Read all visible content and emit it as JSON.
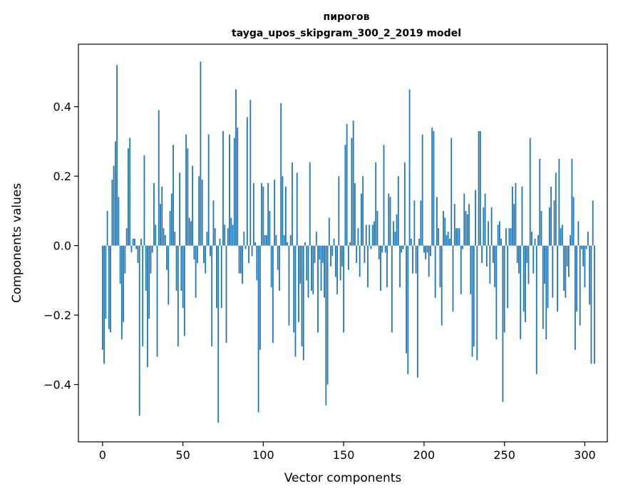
{
  "chart_data": {
    "type": "bar",
    "title": "пирогов",
    "subtitle": "tayga_upos_skipgram_300_2_2019 model",
    "xlabel": "Vector components",
    "ylabel": "Components values",
    "xlim": [
      -15,
      314
    ],
    "ylim": [
      -0.565,
      0.58
    ],
    "xticks": [
      0,
      50,
      100,
      150,
      200,
      250,
      300
    ],
    "xtick_labels": [
      "0",
      "50",
      "100",
      "150",
      "200",
      "250",
      "300"
    ],
    "yticks": [
      -0.4,
      -0.2,
      0.0,
      0.2,
      0.4
    ],
    "ytick_labels": [
      "−0.4",
      "−0.2",
      "0.0",
      "0.2",
      "0.4"
    ],
    "grid": false,
    "bar_color": "#1f77b4",
    "values": [
      -0.3,
      -0.34,
      -0.21,
      0.1,
      -0.24,
      -0.25,
      0.19,
      0.23,
      0.3,
      0.52,
      0.14,
      -0.11,
      -0.27,
      -0.22,
      -0.08,
      0.05,
      0.28,
      0.31,
      -0.02,
      0.02,
      0.02,
      -0.01,
      -0.05,
      -0.49,
      0.02,
      -0.29,
      0.26,
      -0.13,
      -0.35,
      -0.21,
      -0.08,
      -0.02,
      0.18,
      0.06,
      -0.32,
      0.39,
      0.12,
      0.17,
      0.05,
      0.03,
      -0.07,
      -0.17,
      0.1,
      0.15,
      0.29,
      0.04,
      -0.13,
      -0.29,
      0.21,
      -0.13,
      -0.18,
      -0.26,
      0.32,
      0.28,
      0.08,
      0.07,
      0.23,
      -0.04,
      -0.15,
      -0.05,
      0.2,
      0.53,
      0.19,
      -0.05,
      -0.08,
      0.04,
      0.32,
      -0.03,
      -0.29,
      0.13,
      0.05,
      -0.18,
      -0.51,
      0.02,
      -0.18,
      0.33,
      0.06,
      -0.28,
      0.05,
      0.32,
      0.08,
      0.06,
      0.31,
      0.45,
      0.34,
      -0.08,
      -0.08,
      -0.11,
      0.04,
      -0.01,
      0.37,
      -0.05,
      0.42,
      -0.03,
      0.18,
      0.01,
      -0.1,
      -0.48,
      -0.3,
      0.18,
      0.17,
      0.03,
      0.03,
      0.18,
      0.1,
      -0.12,
      -0.28,
      0.19,
      0.03,
      -0.07,
      -0.13,
      0.41,
      0.2,
      0.03,
      0.17,
      0.01,
      -0.23,
      0.03,
      0.24,
      -0.25,
      -0.32,
      0.21,
      -0.22,
      -0.11,
      -0.29,
      -0.33,
      0.01,
      -0.1,
      -0.15,
      0.24,
      -0.13,
      -0.14,
      -0.05,
      0.04,
      -0.25,
      -0.04,
      -0.13,
      -0.05,
      -0.15,
      -0.46,
      -0.4,
      0.08,
      -0.06,
      -0.03,
      0.02,
      -0.09,
      -0.14,
      0.2,
      -0.1,
      -0.06,
      -0.25,
      0.29,
      0.35,
      -0.07,
      0.01,
      0.31,
      0.36,
      0.18,
      -0.05,
      0.05,
      -0.09,
      0.15,
      0.2,
      -0.05,
      0.06,
      -0.12,
      0.06,
      -0.01,
      0.06,
      0.07,
      0.24,
      0.1,
      -0.04,
      -0.13,
      -0.02,
      0.29,
      -0.02,
      -0.12,
      0.15,
      0.14,
      -0.25,
      0.07,
      0.04,
      0.09,
      0.2,
      -0.12,
      -0.02,
      -0.01,
      0.24,
      -0.31,
      -0.37,
      0.45,
      0.02,
      -0.08,
      0.13,
      -0.08,
      -0.38,
      0.02,
      0.13,
      0.32,
      -0.02,
      -0.04,
      -0.02,
      -0.09,
      -0.03,
      0.34,
      0.33,
      -0.15,
      0.14,
      0.05,
      -0.12,
      -0.23,
      0.1,
      0.08,
      0.03,
      0.04,
      0.02,
      0.31,
      -0.19,
      0.12,
      0.05,
      0.05,
      0.05,
      -0.14,
      -0.01,
      0.15,
      0.1,
      0.09,
      0.12,
      -0.14,
      -0.32,
      -0.29,
      0.16,
      -0.33,
      0.33,
      0.33,
      -0.05,
      0.11,
      0.15,
      -0.06,
      0.07,
      -0.11,
      0.11,
      -0.05,
      -0.12,
      -0.27,
      0.06,
      0.07,
      0.02,
      -0.45,
      -0.25,
      0.05,
      -0.18,
      0.05,
      0.05,
      0.17,
      0.12,
      0.18,
      -0.05,
      -0.08,
      -0.27,
      0.17,
      -0.19,
      -0.22,
      -0.05,
      -0.11,
      0.31,
      0.04,
      -0.08,
      0.02,
      -0.37,
      0.03,
      0.25,
      0.1,
      -0.24,
      -0.11,
      -0.27,
      -0.18,
      0.11,
      0.17,
      -0.15,
      0.13,
      0.21,
      -0.19,
      0.25,
      0.05,
      0.06,
      -0.13,
      -0.15,
      -0.06,
      -0.09,
      0.03,
      0.25,
      0.14,
      -0.3,
      -0.19,
      0.07,
      -0.23,
      -0.01,
      -0.06,
      -0.12,
      -0.01,
      0.04,
      -0.17,
      -0.34,
      0.13,
      -0.34
    ]
  }
}
